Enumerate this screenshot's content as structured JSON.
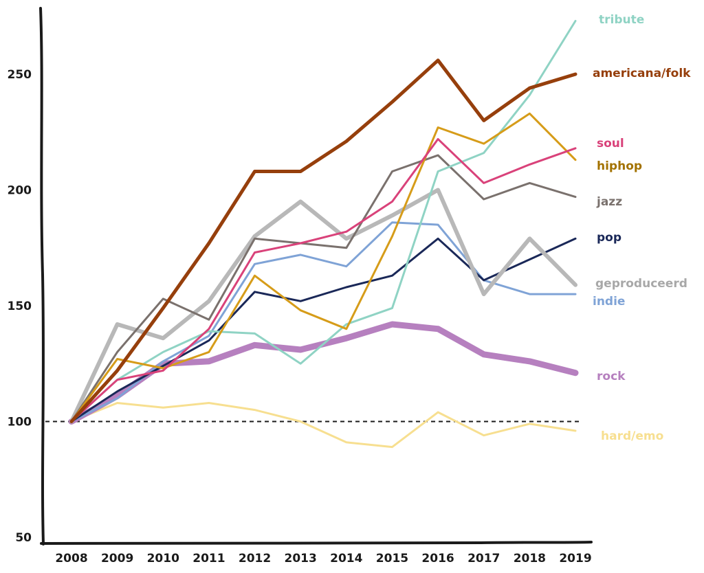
{
  "chart_data": {
    "type": "line",
    "title": "",
    "xlabel": "",
    "ylabel": "",
    "x": [
      2008,
      2009,
      2010,
      2011,
      2012,
      2013,
      2014,
      2015,
      2016,
      2017,
      2018,
      2019
    ],
    "xlim": [
      2008,
      2019
    ],
    "ylim": [
      50,
      280
    ],
    "yticks": [
      50,
      100,
      150,
      200,
      250
    ],
    "grid": false,
    "legend": "labels at line ends (right)",
    "reference_line": {
      "y": 100,
      "style": "dashed",
      "color": "#1a1a1a"
    },
    "series": [
      {
        "name": "hard/emo",
        "color": "#f7df90",
        "width": 3,
        "values": [
          100,
          108,
          106,
          108,
          105,
          100,
          91,
          89,
          104,
          94,
          99,
          96
        ]
      },
      {
        "name": "rock",
        "color": "#b680bf",
        "width": 9,
        "values": [
          100,
          111,
          125,
          126,
          133,
          131,
          136,
          142,
          140,
          129,
          126,
          121
        ]
      },
      {
        "name": "indie",
        "color": "#7fa3d6",
        "width": 3,
        "values": [
          100,
          110,
          126,
          137,
          168,
          172,
          167,
          186,
          185,
          161,
          155,
          155
        ]
      },
      {
        "name": "pop",
        "color": "#1a2858",
        "width": 3,
        "values": [
          100,
          113,
          124,
          135,
          156,
          152,
          158,
          163,
          179,
          161,
          170,
          179
        ]
      },
      {
        "name": "geproduceerd",
        "color": "#b8b8b8",
        "width": 6,
        "values": [
          100,
          142,
          136,
          152,
          180,
          195,
          179,
          189,
          200,
          155,
          179,
          159
        ]
      },
      {
        "name": "jazz",
        "color": "#7a716d",
        "width": 3,
        "values": [
          100,
          130,
          153,
          144,
          179,
          177,
          175,
          208,
          215,
          196,
          203,
          197
        ]
      },
      {
        "name": "tribute",
        "color": "#8fd3c4",
        "width": 3,
        "values": [
          100,
          118,
          130,
          139,
          138,
          125,
          142,
          149,
          208,
          216,
          241,
          273
        ]
      },
      {
        "name": "hiphop",
        "color": "#d69c19",
        "width": 3,
        "values": [
          100,
          127,
          123,
          130,
          163,
          148,
          140,
          180,
          227,
          220,
          233,
          213
        ]
      },
      {
        "name": "soul",
        "color": "#d9427a",
        "width": 3,
        "values": [
          100,
          118,
          122,
          140,
          173,
          177,
          182,
          195,
          222,
          203,
          211,
          218
        ]
      },
      {
        "name": "americana/folk",
        "color": "#963f0c",
        "width": 5,
        "values": [
          100,
          122,
          149,
          177,
          208,
          208,
          221,
          238,
          256,
          230,
          244,
          250
        ]
      }
    ],
    "labels": [
      {
        "series": "tribute",
        "color": "#8fd3c4"
      },
      {
        "series": "americana/folk",
        "color": "#963f0c"
      },
      {
        "series": "soul",
        "color": "#d9427a"
      },
      {
        "series": "hiphop",
        "color": "#a37200"
      },
      {
        "series": "jazz",
        "color": "#7a716d"
      },
      {
        "series": "pop",
        "color": "#1a2858"
      },
      {
        "series": "geproduceerd",
        "color": "#a8a8a8"
      },
      {
        "series": "indie",
        "color": "#7fa3d6"
      },
      {
        "series": "rock",
        "color": "#b680bf"
      },
      {
        "series": "hard/emo",
        "color": "#f7df90"
      }
    ]
  }
}
